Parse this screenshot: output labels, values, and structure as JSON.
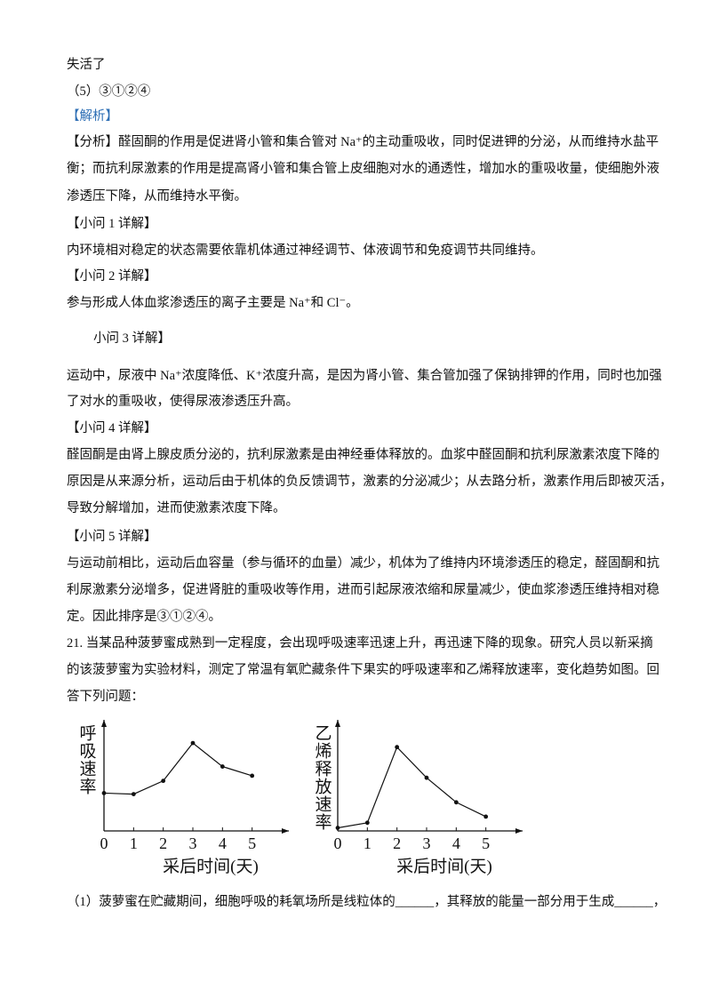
{
  "lines": [
    "失活了",
    "（5）③①②④",
    "【解析】",
    "【分析】醛固酮的作用是促进肾小管和集合管对 Na⁺的主动重吸收，同时促进钾的分泌，从而维持水盐平",
    "衡；而抗利尿激素的作用是提高肾小管和集合管上皮细胞对水的通透性，增加水的重吸收量，使细胞外液",
    "渗透压下降，从而维持水平衡。",
    "【小问 1 详解】",
    "内环境相对稳定的状态需要依靠机体通过神经调节、体液调节和免疫调节共同维持。",
    "【小问 2 详解】",
    "参与形成人体血浆渗透压的离子主要是 Na⁺和 Cl⁻。",
    "小问 3 详解】",
    "运动中，尿液中 Na⁺浓度降低、K⁺浓度升高，是因为肾小管、集合管加强了保钠排钾的作用，同时也加强",
    "了对水的重吸收，使得尿液渗透压升高。",
    "【小问 4 详解】",
    "醛固酮是由肾上腺皮质分泌的，抗利尿激素是由神经垂体释放的。血浆中醛固酮和抗利尿激素浓度下降的",
    "原因是从来源分析，运动后由于机体的负反馈调节，激素的分泌减少；从去路分析，激素作用后即被灭活，",
    "导致分解增加，进而使激素浓度下降。",
    "【小问 5 详解】",
    "与运动前相比，运动后血容量（参与循环的血量）减少，机体为了维持内环境渗透压的稳定，醛固酮和抗",
    "利尿激素分泌增多，促进肾脏的重吸收等作用，进而引起尿液浓缩和尿量减少，使血浆渗透压维持相对稳",
    "定。因此排序是③①②④。",
    "21. 当某品种菠萝蜜成熟到一定程度，会出现呼吸速率迅速上升，再迅速下降的现象。研究人员以新采摘",
    "的该菠萝蜜为实验材料，测定了常温有氧贮藏条件下果实的呼吸速率和乙烯释放速率，变化趋势如图。回",
    "答下列问题：",
    "（1）菠萝蜜在贮藏期间，细胞呼吸的耗氧场所是线粒体的______，其释放的能量一部分用于生成______，"
  ],
  "chart_data": [
    {
      "type": "line",
      "x": [
        0,
        1,
        2,
        3,
        4,
        5
      ],
      "values": [
        37,
        36,
        49,
        86,
        63,
        54
      ],
      "xlim": [
        0,
        6
      ],
      "ylim": [
        0,
        100
      ],
      "xticks": [
        0,
        1,
        2,
        3,
        4,
        5
      ],
      "xlabel": "采后时间(天)",
      "ylabel": "呼吸速率",
      "color": "#111"
    },
    {
      "type": "line",
      "x": [
        0,
        1,
        2,
        3,
        4,
        5
      ],
      "values": [
        3,
        8,
        82,
        52,
        28,
        14
      ],
      "xlim": [
        0,
        6
      ],
      "ylim": [
        0,
        100
      ],
      "xticks": [
        0,
        1,
        2,
        3,
        4,
        5
      ],
      "xlabel": "采后时间(天)",
      "ylabel": "乙烯释放速率",
      "color": "#111"
    }
  ]
}
